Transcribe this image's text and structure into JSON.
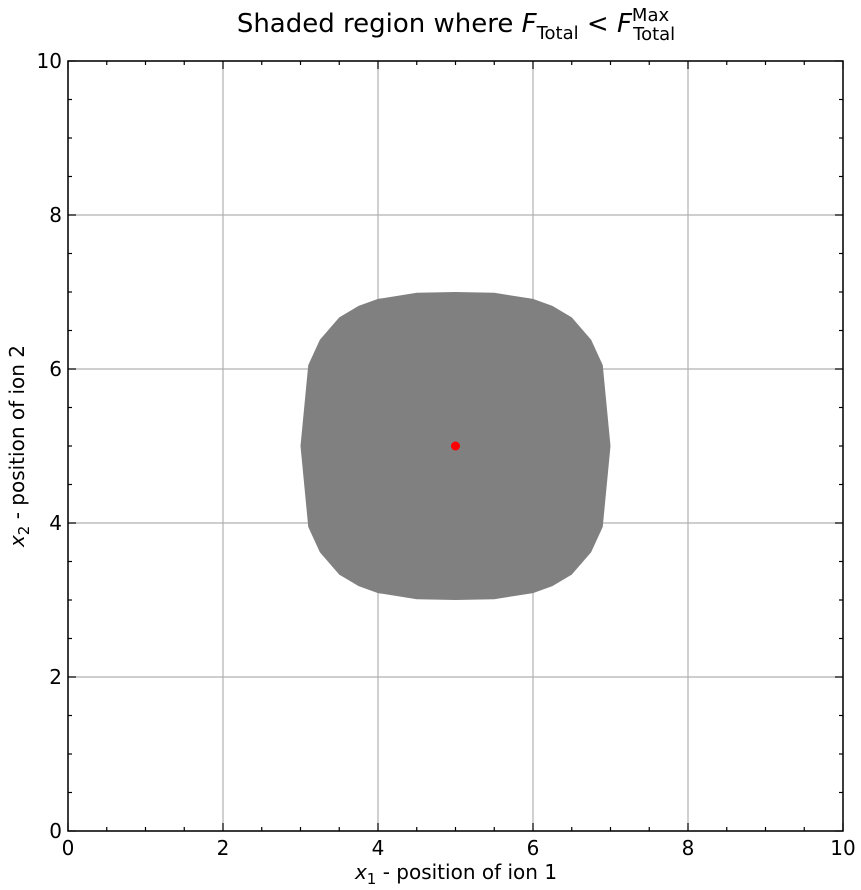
{
  "chart_data": {
    "type": "region",
    "title": [
      "Shaded region where ",
      "F",
      "Total",
      " < ",
      "F",
      "Max",
      "Total"
    ],
    "xlabel": [
      "x",
      "1",
      " - position of ion 1"
    ],
    "ylabel": [
      "x",
      "2",
      " - position of ion 2"
    ],
    "xlim": [
      0,
      10
    ],
    "ylim": [
      0,
      10
    ],
    "xticks": [
      0,
      2,
      4,
      6,
      8,
      10
    ],
    "yticks": [
      0,
      2,
      4,
      6,
      8,
      10
    ],
    "grid": true,
    "region": {
      "color": "#808080",
      "x": [
        7,
        6.9,
        6.75,
        6.5,
        6.25,
        6,
        5.5,
        5,
        4.5,
        4,
        3.75,
        3.5,
        3.25,
        3.1,
        3,
        3.1,
        3.25,
        3.5,
        3.75,
        4,
        4.5,
        5,
        5.5,
        6,
        6.25,
        6.5,
        6.75,
        6.9
      ],
      "y": [
        5,
        6.05,
        6.38,
        6.67,
        6.82,
        6.91,
        6.99,
        7,
        6.99,
        6.91,
        6.82,
        6.67,
        6.38,
        6.05,
        5,
        3.95,
        3.62,
        3.33,
        3.18,
        3.09,
        3.01,
        3,
        3.01,
        3.09,
        3.18,
        3.33,
        3.62,
        3.95
      ]
    },
    "point": {
      "x": 5,
      "y": 5,
      "color": "#ff0000"
    }
  }
}
